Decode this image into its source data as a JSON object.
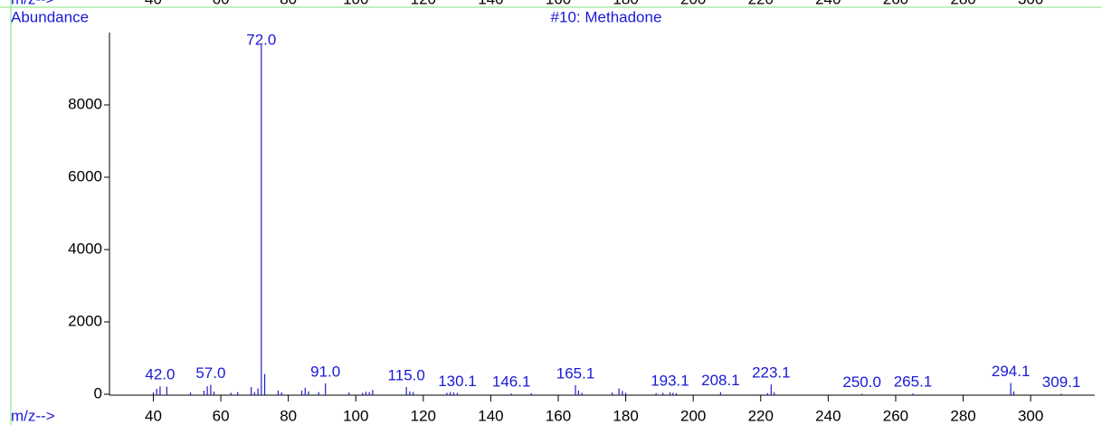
{
  "chart_data": {
    "type": "spectrum",
    "title": "#10: Methadone",
    "y_label": "Abundance",
    "x_label": "m/z-->",
    "color": "#1f1fc4",
    "xlim": [
      27,
      319
    ],
    "ylim": [
      0,
      10000
    ],
    "xticks": [
      40,
      60,
      80,
      100,
      120,
      140,
      160,
      180,
      200,
      220,
      240,
      260,
      280,
      300
    ],
    "yticks": [
      0,
      2000,
      4000,
      6000,
      8000
    ],
    "x": [
      40,
      41,
      42,
      44,
      51,
      55,
      56,
      57,
      58,
      63,
      65,
      69,
      70,
      71,
      72,
      73,
      77,
      78,
      84,
      85,
      86,
      89,
      91,
      98,
      102,
      103,
      104,
      105,
      115,
      116,
      117,
      127,
      128,
      129,
      130.1,
      146.1,
      152,
      165.1,
      166,
      167,
      176,
      178,
      179,
      180,
      189,
      191,
      193.1,
      194,
      195,
      208.1,
      222,
      223.1,
      224,
      250.0,
      265.1,
      294.1,
      295,
      309.1
    ],
    "values": [
      50,
      150,
      220,
      210,
      50,
      100,
      220,
      260,
      70,
      40,
      60,
      200,
      60,
      160,
      9650,
      560,
      100,
      50,
      100,
      180,
      80,
      60,
      300,
      50,
      40,
      70,
      60,
      120,
      200,
      80,
      60,
      40,
      60,
      50,
      40,
      20,
      30,
      250,
      100,
      40,
      50,
      160,
      90,
      40,
      30,
      40,
      50,
      40,
      30,
      60,
      30,
      270,
      60,
      10,
      20,
      310,
      80,
      15
    ],
    "x_labels": [
      null,
      null,
      "42.0",
      null,
      null,
      null,
      null,
      "57.0",
      null,
      null,
      null,
      null,
      null,
      null,
      "72.0",
      null,
      null,
      null,
      null,
      null,
      null,
      null,
      "91.0",
      null,
      null,
      null,
      null,
      null,
      "115.0",
      null,
      null,
      null,
      null,
      null,
      "130.1",
      "146.1",
      null,
      "165.1",
      null,
      null,
      null,
      null,
      null,
      null,
      null,
      null,
      "193.1",
      null,
      null,
      "208.1",
      null,
      "223.1",
      null,
      "250.0",
      "265.1",
      "294.1",
      null,
      "309.1"
    ]
  }
}
